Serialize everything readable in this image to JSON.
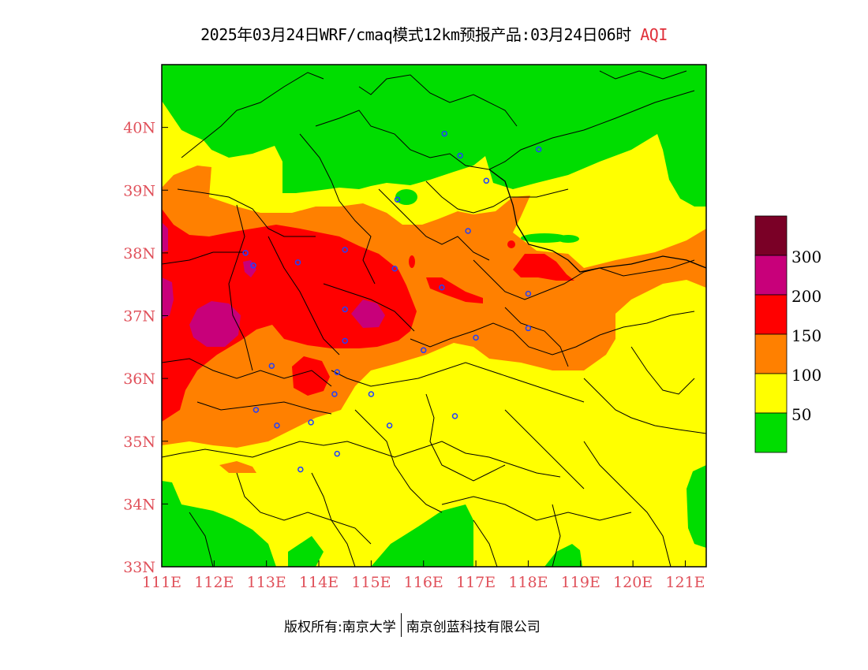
{
  "title": {
    "main": "2025年03月24日WRF/cmaq模式12km预报产品:03月24日06时",
    "variable": "AQI"
  },
  "colors": {
    "good": "#00dd00",
    "moderate": "#ffff00",
    "usg": "#ff7f00",
    "unhealthy": "#ff0000",
    "very_unhealthy": "#c8007a",
    "hazardous": "#7a0026",
    "tick_label": "#e0505a"
  },
  "map": {
    "lon_range": [
      111,
      121.4
    ],
    "lat_range": [
      33,
      41
    ],
    "x_ticks": [
      "111E",
      "112E",
      "113E",
      "114E",
      "115E",
      "116E",
      "117E",
      "118E",
      "119E",
      "120E",
      "121E"
    ],
    "y_ticks": [
      "33N",
      "34N",
      "35N",
      "36N",
      "37N",
      "38N",
      "39N",
      "40N"
    ],
    "stations": [
      [
        116.4,
        39.9
      ],
      [
        116.7,
        39.55
      ],
      [
        118.2,
        39.65
      ],
      [
        117.2,
        39.15
      ],
      [
        115.5,
        38.85
      ],
      [
        116.85,
        38.35
      ],
      [
        114.5,
        38.05
      ],
      [
        115.45,
        37.75
      ],
      [
        113.6,
        37.85
      ],
      [
        112.6,
        38.0
      ],
      [
        112.75,
        37.8
      ],
      [
        116.35,
        37.45
      ],
      [
        118.0,
        37.35
      ],
      [
        114.5,
        37.1
      ],
      [
        114.5,
        36.6
      ],
      [
        116.0,
        36.45
      ],
      [
        117.0,
        36.65
      ],
      [
        118.0,
        36.8
      ],
      [
        113.1,
        36.2
      ],
      [
        114.35,
        36.1
      ],
      [
        114.3,
        35.75
      ],
      [
        115.0,
        35.75
      ],
      [
        112.8,
        35.5
      ],
      [
        113.2,
        35.25
      ],
      [
        113.85,
        35.3
      ],
      [
        115.35,
        35.25
      ],
      [
        116.6,
        35.4
      ],
      [
        114.35,
        34.8
      ],
      [
        113.65,
        34.55
      ]
    ]
  },
  "legend": {
    "labels": [
      "50",
      "100",
      "150",
      "200",
      "300"
    ]
  },
  "footer": {
    "left": "版权所有:南京大学",
    "right": "南京创蓝科技有限公司"
  }
}
